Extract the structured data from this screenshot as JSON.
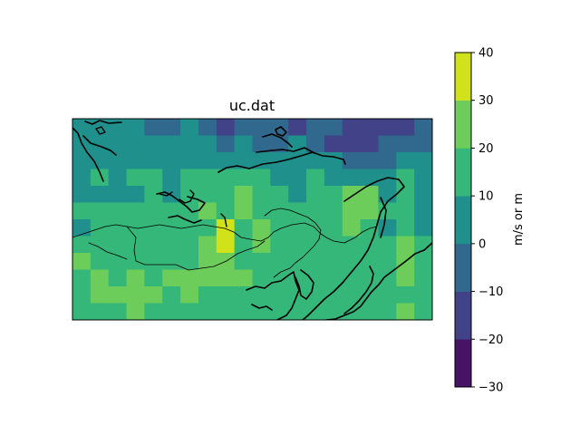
{
  "chart_data": {
    "type": "heatmap",
    "title": "uc.dat",
    "colorbar": {
      "label": "m/s or m",
      "levels": [
        -30,
        -20,
        -10,
        0,
        10,
        20,
        30,
        40
      ],
      "tick_labels": [
        "−30",
        "−20",
        "−10",
        "0",
        "10",
        "20",
        "30",
        "40"
      ],
      "colors": [
        "#471365",
        "#414287",
        "#30688e",
        "#20908c",
        "#35b779",
        "#6ccd5a",
        "#d1e21b"
      ]
    },
    "grid": {
      "rows": 12,
      "cols": 20,
      "values": [
        [
          5,
          5,
          0,
          0,
          -5,
          -5,
          0,
          -5,
          -15,
          -5,
          -5,
          -5,
          -15,
          -5,
          -5,
          -15,
          -15,
          -15,
          -15,
          -5
        ],
        [
          0,
          5,
          5,
          0,
          5,
          0,
          5,
          0,
          -5,
          0,
          -5,
          -5,
          0,
          -5,
          -15,
          -15,
          -15,
          -5,
          -5,
          -5
        ],
        [
          5,
          5,
          5,
          5,
          5,
          5,
          5,
          5,
          5,
          5,
          0,
          0,
          5,
          5,
          0,
          -5,
          -5,
          -5,
          5,
          5
        ],
        [
          5,
          15,
          5,
          15,
          15,
          5,
          15,
          15,
          15,
          15,
          15,
          5,
          5,
          15,
          5,
          5,
          5,
          5,
          15,
          5
        ],
        [
          5,
          5,
          5,
          5,
          15,
          5,
          15,
          15,
          15,
          25,
          15,
          15,
          5,
          15,
          15,
          25,
          25,
          5,
          15,
          5
        ],
        [
          15,
          15,
          15,
          15,
          15,
          15,
          15,
          25,
          15,
          25,
          15,
          15,
          15,
          15,
          15,
          25,
          25,
          15,
          15,
          5
        ],
        [
          5,
          15,
          15,
          15,
          15,
          15,
          15,
          15,
          35,
          15,
          25,
          15,
          15,
          15,
          15,
          25,
          15,
          5,
          15,
          5
        ],
        [
          15,
          15,
          15,
          15,
          15,
          15,
          15,
          25,
          35,
          15,
          25,
          15,
          15,
          15,
          15,
          15,
          15,
          15,
          25,
          15
        ],
        [
          25,
          15,
          15,
          15,
          15,
          15,
          15,
          25,
          25,
          15,
          15,
          15,
          15,
          15,
          15,
          15,
          15,
          15,
          25,
          15
        ],
        [
          15,
          25,
          15,
          25,
          15,
          25,
          25,
          25,
          25,
          25,
          15,
          15,
          15,
          15,
          15,
          15,
          15,
          15,
          25,
          15
        ],
        [
          15,
          25,
          25,
          25,
          25,
          15,
          25,
          15,
          15,
          15,
          15,
          15,
          15,
          15,
          15,
          15,
          15,
          15,
          15,
          15
        ],
        [
          15,
          15,
          15,
          25,
          15,
          15,
          15,
          15,
          15,
          15,
          15,
          15,
          15,
          15,
          15,
          15,
          15,
          15,
          25,
          15
        ]
      ]
    },
    "xlabel": "",
    "ylabel": "",
    "grid_lines": false
  }
}
